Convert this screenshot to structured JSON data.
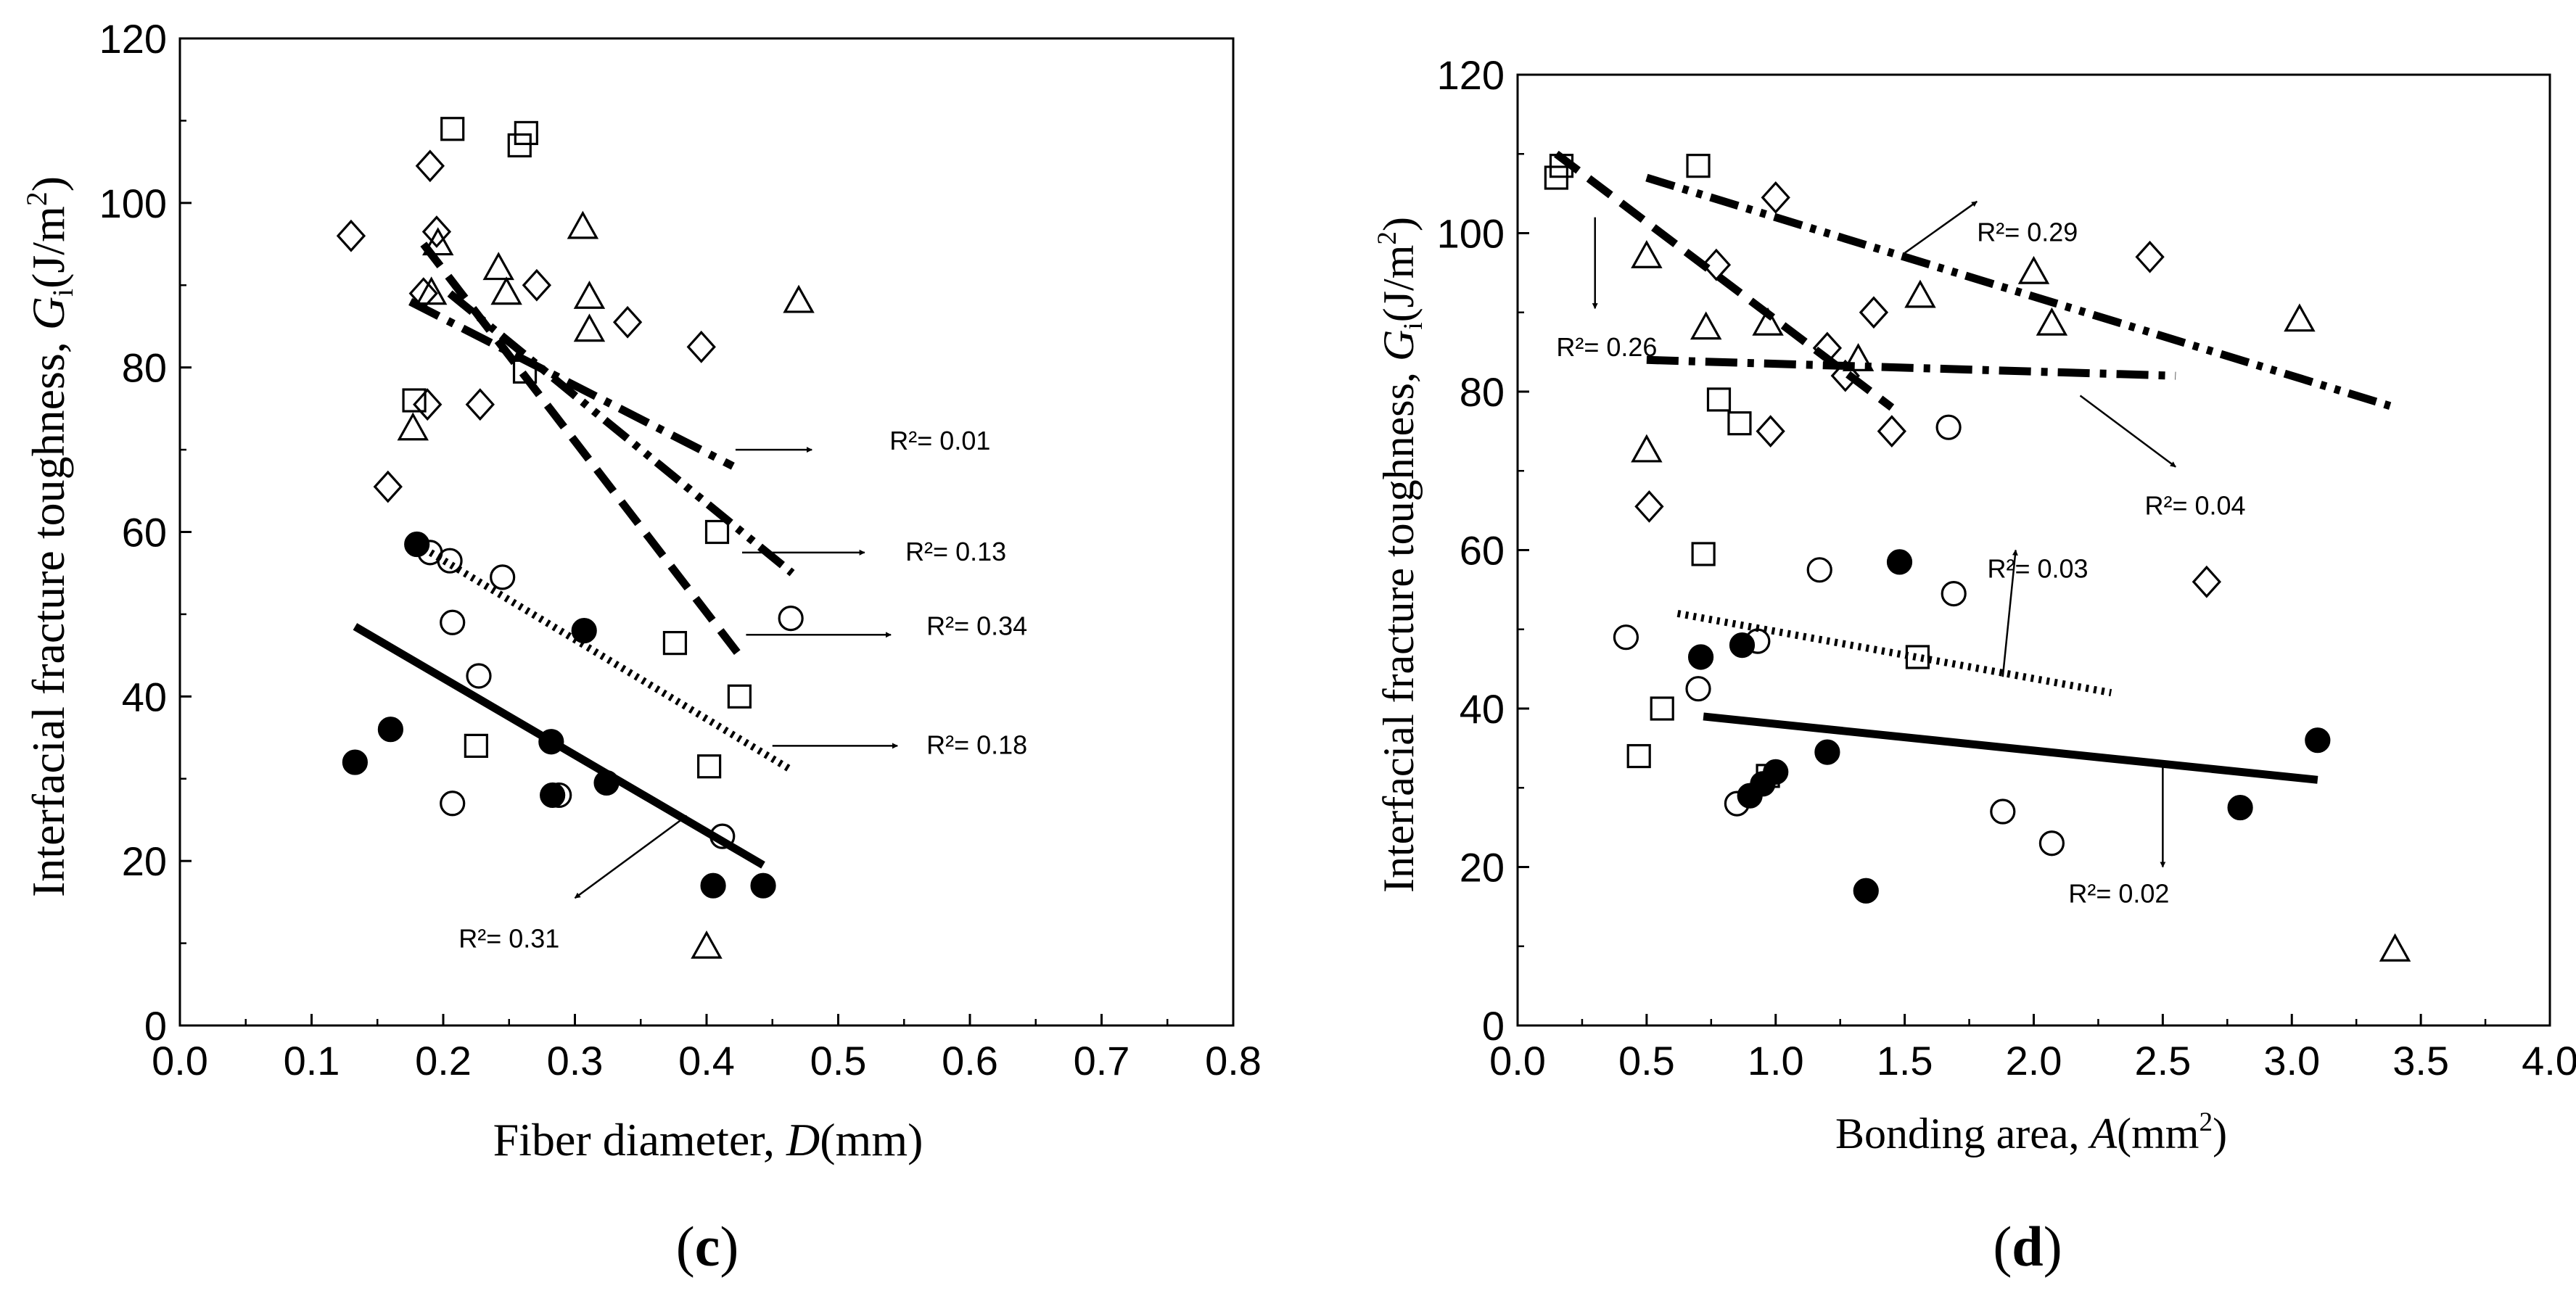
{
  "chart_data": [
    {
      "type": "scatter",
      "panel": "c",
      "xlabel": "Fiber diameter, D(mm)",
      "ylabel": "Interfacial fracture toughness, Gi(J/m2)",
      "xlim": [
        0.0,
        0.8
      ],
      "ylim": [
        0,
        120
      ],
      "xticks": [
        "0.0",
        "0.1",
        "0.2",
        "0.3",
        "0.4",
        "0.5",
        "0.6",
        "0.7",
        "0.8"
      ],
      "yticks": [
        "0",
        "20",
        "40",
        "60",
        "80",
        "100",
        "120"
      ],
      "series": [
        {
          "name": "filled circles",
          "marker": "circle-filled",
          "x": [
            0.133,
            0.16,
            0.18,
            0.282,
            0.283,
            0.307,
            0.324,
            0.405,
            0.443
          ],
          "y": [
            32,
            36,
            58.5,
            34.5,
            28,
            48,
            29.5,
            17,
            17
          ]
        },
        {
          "name": "open circles",
          "marker": "circle-open",
          "x": [
            0.19,
            0.205,
            0.207,
            0.207,
            0.227,
            0.245,
            0.288,
            0.412,
            0.464
          ],
          "y": [
            57.5,
            56.5,
            49,
            27,
            42.5,
            54.5,
            28,
            23,
            49.5
          ]
        },
        {
          "name": "open squares",
          "marker": "square-open",
          "x": [
            0.207,
            0.178,
            0.225,
            0.258,
            0.263,
            0.262,
            0.376,
            0.408,
            0.425,
            0.402
          ],
          "y": [
            109,
            76,
            34,
            107,
            108.5,
            79.5,
            46.5,
            60,
            40,
            31.5
          ]
        },
        {
          "name": "open diamonds",
          "marker": "diamond-open",
          "x": [
            0.13,
            0.158,
            0.19,
            0.195,
            0.185,
            0.188,
            0.228,
            0.271,
            0.34,
            0.396
          ],
          "y": [
            96,
            65.5,
            104.5,
            96.5,
            89,
            75.5,
            75.5,
            90,
            85.5,
            82.5
          ]
        },
        {
          "name": "open triangles",
          "marker": "triangle-open",
          "x": [
            0.177,
            0.191,
            0.196,
            0.242,
            0.248,
            0.306,
            0.311,
            0.311,
            0.47,
            0.4
          ],
          "y": [
            72.5,
            89,
            95,
            92,
            89,
            97,
            88.5,
            84.5,
            88,
            9.5
          ]
        }
      ],
      "fit_lines": [
        {
          "style": "solid",
          "x": [
            0.133,
            0.443
          ],
          "y": [
            48.5,
            19.5
          ],
          "r2_label": "R²= 0.31"
        },
        {
          "style": "dotted",
          "x": [
            0.18,
            0.465
          ],
          "y": [
            58.5,
            31
          ],
          "r2_label": "R²= 0.18"
        },
        {
          "style": "dashed",
          "x": [
            0.185,
            0.425
          ],
          "y": [
            95,
            45
          ],
          "r2_label": "R²= 0.34"
        },
        {
          "style": "dash-dot",
          "x": [
            0.175,
            0.42
          ],
          "y": [
            88,
            68
          ],
          "r2_label": "R²= 0.01"
        },
        {
          "style": "dash-dot-dot",
          "x": [
            0.205,
            0.465
          ],
          "y": [
            89,
            55
          ],
          "r2_label": "R²= 0.13"
        }
      ],
      "annotations": [
        {
          "text": "R²= 0.01",
          "pos": [
            0.539,
            70
          ],
          "arrow_from": [
            0.422,
            70
          ],
          "arrow_to": [
            0.48,
            70
          ],
          "anchor": "start"
        },
        {
          "text": "R²= 0.13",
          "pos": [
            0.551,
            56.5
          ],
          "arrow_from": [
            0.427,
            57.5
          ],
          "arrow_to": [
            0.52,
            57.5
          ],
          "anchor": "start"
        },
        {
          "text": "R²= 0.34",
          "pos": [
            0.567,
            47.5
          ],
          "arrow_from": [
            0.43,
            47.5
          ],
          "arrow_to": [
            0.54,
            47.5
          ],
          "anchor": "start"
        },
        {
          "text": "R²= 0.18",
          "pos": [
            0.567,
            33
          ],
          "arrow_from": [
            0.45,
            34
          ],
          "arrow_to": [
            0.545,
            34
          ],
          "anchor": "start"
        },
        {
          "text": "R²= 0.31",
          "pos": [
            0.25,
            9.5
          ],
          "arrow_from": [
            0.385,
            25.5
          ],
          "arrow_to": [
            0.3,
            15.5
          ],
          "anchor": "middle"
        }
      ],
      "caption_label": "(c)"
    },
    {
      "type": "scatter",
      "panel": "d",
      "xlabel": "Bonding area, A(mm2)",
      "ylabel": "Interfacial fracture toughness, Gi(J/m2)",
      "xlim": [
        0.0,
        4.0
      ],
      "ylim": [
        0,
        120
      ],
      "xticks": [
        "0.0",
        "0.5",
        "1.0",
        "1.5",
        "2.0",
        "2.5",
        "3.0",
        "3.5",
        "4.0"
      ],
      "yticks": [
        "0",
        "20",
        "40",
        "60",
        "80",
        "100",
        "120"
      ],
      "series": [
        {
          "name": "filled circles",
          "marker": "circle-filled",
          "x": [
            0.71,
            0.87,
            0.9,
            0.95,
            1.0,
            1.2,
            1.35,
            1.48,
            2.8,
            3.1
          ],
          "y": [
            46.5,
            48,
            29,
            30.5,
            32,
            34.5,
            17,
            58.5,
            27.5,
            36
          ]
        },
        {
          "name": "open circles",
          "marker": "circle-open",
          "x": [
            0.42,
            0.7,
            0.85,
            0.93,
            1.17,
            1.67,
            1.69,
            1.88,
            2.07
          ],
          "y": [
            49,
            42.5,
            28,
            48.5,
            57.5,
            75.5,
            54.5,
            27,
            23
          ]
        },
        {
          "name": "open squares",
          "marker": "square-open",
          "x": [
            0.15,
            0.17,
            0.72,
            0.47,
            0.56,
            0.78,
            0.86,
            0.97,
            1.55,
            0.7
          ],
          "y": [
            107,
            108.5,
            59.5,
            34,
            40,
            79,
            76,
            31.5,
            46.5,
            108.5
          ]
        },
        {
          "name": "open diamonds",
          "marker": "diamond-open",
          "x": [
            0.51,
            0.77,
            1.0,
            0.98,
            1.2,
            1.27,
            1.38,
            1.45,
            2.45,
            2.67
          ],
          "y": [
            65.5,
            96,
            104.5,
            75,
            85.5,
            82,
            90,
            75,
            97,
            56
          ]
        },
        {
          "name": "open triangles",
          "marker": "triangle-open",
          "x": [
            0.5,
            0.5,
            0.73,
            0.97,
            1.32,
            1.56,
            2.0,
            2.07,
            3.03,
            3.4
          ],
          "y": [
            72.5,
            97,
            88,
            88.5,
            84,
            92,
            95,
            88.5,
            89,
            9.5
          ]
        }
      ],
      "fit_lines": [
        {
          "style": "solid",
          "x": [
            0.72,
            3.1
          ],
          "y": [
            39,
            31
          ],
          "r2_label": "R²= 0.02"
        },
        {
          "style": "dotted",
          "x": [
            0.62,
            2.3
          ],
          "y": [
            52,
            42
          ],
          "r2_label": "R²= 0.03"
        },
        {
          "style": "dashed",
          "x": [
            0.15,
            1.45
          ],
          "y": [
            110,
            78
          ],
          "r2_label": "R²= 0.26"
        },
        {
          "style": "dash-dot",
          "x": [
            0.5,
            2.55
          ],
          "y": [
            84,
            82
          ],
          "r2_label": "R²= 0.04"
        },
        {
          "style": "dash-dot-dot",
          "x": [
            0.5,
            3.4
          ],
          "y": [
            107,
            78
          ],
          "r2_label": "R²= 0.29"
        }
      ],
      "annotations": [
        {
          "text": "R²= 0.29",
          "pos": [
            1.78,
            99
          ],
          "arrow_from": [
            1.5,
            97.5
          ],
          "arrow_to": [
            1.78,
            104
          ],
          "anchor": "start"
        },
        {
          "text": "R²= 0.26",
          "pos": [
            0.15,
            84.5
          ],
          "arrow_from": [
            0.3,
            102
          ],
          "arrow_to": [
            0.3,
            90.5
          ],
          "anchor": "start"
        },
        {
          "text": "R²= 0.04",
          "pos": [
            2.43,
            64.5
          ],
          "arrow_from": [
            2.18,
            79.5
          ],
          "arrow_to": [
            2.55,
            70.5
          ],
          "anchor": "start"
        },
        {
          "text": "R²= 0.03",
          "pos": [
            1.82,
            56.5
          ],
          "arrow_from": [
            1.88,
            44
          ],
          "arrow_to": [
            1.93,
            60
          ],
          "anchor": "start"
        },
        {
          "text": "R²= 0.02",
          "pos": [
            2.33,
            15.5
          ],
          "arrow_from": [
            2.5,
            33
          ],
          "arrow_to": [
            2.5,
            20
          ],
          "anchor": "middle"
        }
      ],
      "caption_label": "(d)"
    }
  ]
}
